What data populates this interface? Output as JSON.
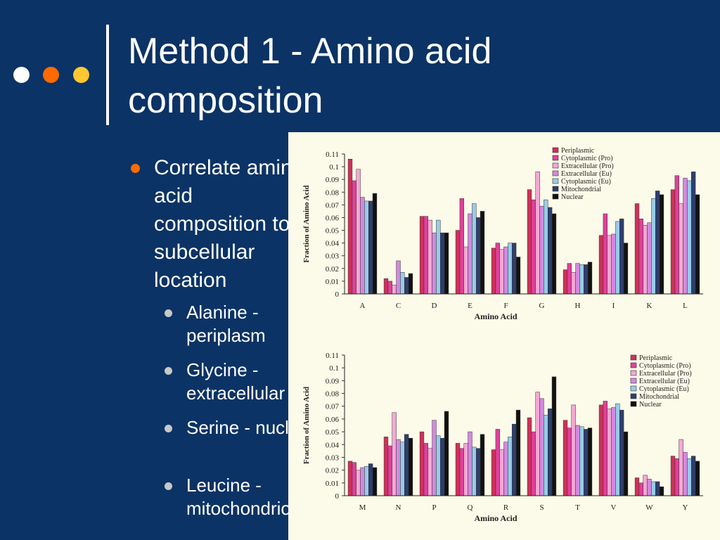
{
  "slide": {
    "title": "Method 1 - Amino acid composition",
    "bullet": "Correlate amino acid composition to subcellular location",
    "subbullets": [
      "Alanine - periplasm",
      "Glycine - extracellular",
      "Serine - nucleus",
      "Leucine - mitochondrion"
    ]
  },
  "chart_data": [
    {
      "type": "bar",
      "xlabel": "Amino Acid",
      "ylabel": "Fraction of Amino Acid",
      "categories": [
        "A",
        "C",
        "D",
        "E",
        "F",
        "G",
        "H",
        "I",
        "K",
        "L"
      ],
      "ylim": [
        0,
        0.11
      ],
      "yticks": [
        0,
        0.01,
        0.02,
        0.03,
        0.04,
        0.05,
        0.06,
        0.07,
        0.08,
        0.09,
        0.1,
        0.11
      ],
      "series": [
        {
          "name": "Periplasmic",
          "color": "#d0305a",
          "values": [
            0.106,
            0.012,
            0.061,
            0.05,
            0.036,
            0.082,
            0.019,
            0.046,
            0.071,
            0.082
          ]
        },
        {
          "name": "Cytoplasmic (Pro)",
          "color": "#e0409a",
          "values": [
            0.089,
            0.01,
            0.061,
            0.075,
            0.04,
            0.074,
            0.024,
            0.063,
            0.059,
            0.093
          ]
        },
        {
          "name": "Extracellular (Pro)",
          "color": "#f4a8d4",
          "values": [
            0.098,
            0.007,
            0.058,
            0.037,
            0.035,
            0.096,
            0.017,
            0.046,
            0.054,
            0.071
          ]
        },
        {
          "name": "Extracellular (Eu)",
          "color": "#d488e0",
          "values": [
            0.076,
            0.026,
            0.048,
            0.063,
            0.037,
            0.069,
            0.024,
            0.047,
            0.056,
            0.091
          ]
        },
        {
          "name": "Cytoplasmic (Eu)",
          "color": "#98cce8",
          "values": [
            0.073,
            0.017,
            0.058,
            0.071,
            0.04,
            0.074,
            0.023,
            0.057,
            0.075,
            0.089
          ]
        },
        {
          "name": "Mitochondrial",
          "color": "#2e3e6e",
          "values": [
            0.073,
            0.013,
            0.048,
            0.06,
            0.04,
            0.068,
            0.023,
            0.059,
            0.081,
            0.096
          ]
        },
        {
          "name": "Nuclear",
          "color": "#111111",
          "values": [
            0.079,
            0.016,
            0.048,
            0.065,
            0.029,
            0.063,
            0.025,
            0.04,
            0.078,
            0.078
          ]
        }
      ]
    },
    {
      "type": "bar",
      "xlabel": "Amino Acid",
      "ylabel": "Fraction of Amino Acid",
      "categories": [
        "M",
        "N",
        "P",
        "Q",
        "R",
        "S",
        "T",
        "V",
        "W",
        "Y"
      ],
      "ylim": [
        0,
        0.11
      ],
      "yticks": [
        0,
        0.01,
        0.02,
        0.03,
        0.04,
        0.05,
        0.06,
        0.07,
        0.08,
        0.09,
        0.1,
        0.11
      ],
      "series": [
        {
          "name": "Periplasmic",
          "color": "#d0305a",
          "values": [
            0.027,
            0.046,
            0.05,
            0.041,
            0.036,
            0.061,
            0.059,
            0.071,
            0.014,
            0.031
          ]
        },
        {
          "name": "Cytoplasmic (Pro)",
          "color": "#e0409a",
          "values": [
            0.026,
            0.039,
            0.041,
            0.037,
            0.052,
            0.05,
            0.053,
            0.074,
            0.01,
            0.029
          ]
        },
        {
          "name": "Extracellular (Pro)",
          "color": "#f4a8d4",
          "values": [
            0.02,
            0.065,
            0.037,
            0.041,
            0.036,
            0.081,
            0.071,
            0.068,
            0.016,
            0.044
          ]
        },
        {
          "name": "Extracellular (Eu)",
          "color": "#d488e0",
          "values": [
            0.022,
            0.044,
            0.059,
            0.05,
            0.042,
            0.076,
            0.055,
            0.069,
            0.013,
            0.034
          ]
        },
        {
          "name": "Cytoplasmic (Eu)",
          "color": "#98cce8",
          "values": [
            0.023,
            0.042,
            0.047,
            0.038,
            0.046,
            0.063,
            0.054,
            0.072,
            0.011,
            0.029
          ]
        },
        {
          "name": "Mitochondrial",
          "color": "#2e3e6e",
          "values": [
            0.025,
            0.048,
            0.045,
            0.037,
            0.056,
            0.068,
            0.052,
            0.067,
            0.011,
            0.031
          ]
        },
        {
          "name": "Nuclear",
          "color": "#111111",
          "values": [
            0.022,
            0.045,
            0.066,
            0.048,
            0.067,
            0.093,
            0.053,
            0.05,
            0.007,
            0.027
          ]
        }
      ]
    }
  ]
}
